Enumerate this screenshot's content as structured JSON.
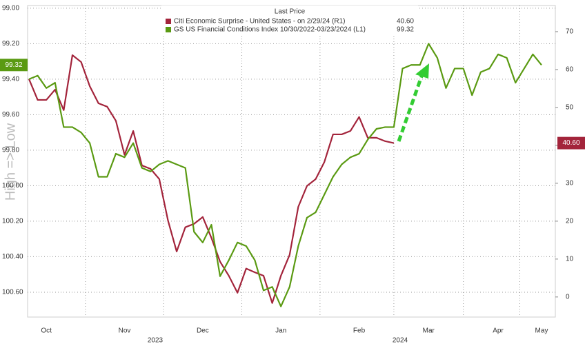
{
  "chart_data": {
    "type": "line",
    "legend_title": "Last Price",
    "axis_label": "High => Low",
    "years": [
      "2023",
      "2024"
    ],
    "categories": [
      null,
      null,
      "Oct",
      null,
      null,
      null,
      null,
      null,
      null,
      null,
      null,
      "Nov",
      null,
      null,
      null,
      null,
      null,
      null,
      null,
      null,
      "Dec",
      null,
      null,
      null,
      null,
      null,
      null,
      null,
      null,
      "Jan",
      null,
      null,
      null,
      null,
      null,
      null,
      null,
      null,
      "Feb",
      null,
      null,
      null,
      null,
      null,
      null,
      null,
      "Mar",
      null,
      null,
      null,
      null,
      null,
      null,
      null,
      "Apr",
      null,
      null,
      null,
      null,
      "May"
    ],
    "ylim": [
      100.74,
      98.985
    ],
    "yticks": [
      {
        "value": 99,
        "label": "99.00"
      },
      {
        "value": 99.2,
        "label": "99.20"
      },
      {
        "value": 99.4,
        "label": "99.40"
      },
      {
        "value": 99.6,
        "label": "99.60"
      },
      {
        "value": 99.8,
        "label": "99.80"
      },
      {
        "value": 100,
        "label": "100.00"
      },
      {
        "value": 100.2,
        "label": "100.20"
      },
      {
        "value": 100.4,
        "label": "100.40"
      },
      {
        "value": 100.6,
        "label": "100.60"
      }
    ],
    "y2lim": [
      -5.3,
      76.9
    ],
    "y2ticks": [
      0,
      10,
      20,
      30,
      40,
      50,
      60,
      70
    ],
    "grid": true,
    "series": [
      {
        "name": "Citi Economic Surprise - United States -   on 2/29/24  (R1)",
        "color": "#a3243b",
        "axis": "y2",
        "last_label": "40.60",
        "values": [
          57.5,
          52.0,
          52.0,
          54.7,
          49.3,
          63.8,
          62.0,
          55.6,
          51.1,
          50.2,
          46.5,
          37.5,
          43.8,
          34.7,
          33.8,
          31.1,
          20.2,
          12.0,
          18.4,
          19.3,
          21.1,
          15.6,
          9.3,
          5.6,
          1.1,
          7.5,
          6.5,
          5.6,
          -1.6,
          5.6,
          11.1,
          23.8,
          29.3,
          31.1,
          35.6,
          42.9,
          42.9,
          43.8,
          47.5,
          42.0,
          42.0,
          41.1,
          40.6,
          null,
          null,
          null,
          null,
          null,
          null,
          null,
          null,
          null,
          null,
          null,
          null,
          null,
          null,
          null,
          null,
          null
        ]
      },
      {
        "name": "GS US Financial Conditions Index 10/30/2022-03/23/2024  (L1)",
        "color": "#5a9a12",
        "axis": "y",
        "last_label": "99.32",
        "values": [
          99.4,
          99.38,
          99.45,
          99.42,
          99.67,
          99.67,
          99.7,
          99.76,
          99.95,
          99.95,
          99.82,
          99.84,
          99.76,
          99.9,
          99.92,
          99.88,
          99.86,
          99.88,
          99.9,
          100.26,
          100.32,
          100.22,
          100.51,
          100.42,
          100.32,
          100.34,
          100.42,
          100.59,
          100.57,
          100.68,
          100.57,
          100.34,
          100.18,
          100.15,
          100.05,
          99.95,
          99.88,
          99.84,
          99.82,
          99.74,
          99.68,
          99.67,
          99.67,
          99.34,
          99.32,
          99.32,
          99.2,
          99.28,
          99.45,
          99.34,
          99.34,
          99.49,
          99.36,
          99.34,
          99.26,
          99.28,
          99.42,
          99.34,
          99.26,
          99.32
        ]
      }
    ]
  }
}
